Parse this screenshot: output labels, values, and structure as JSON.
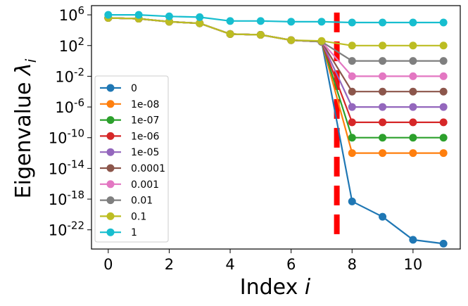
{
  "chart_data": {
    "type": "line",
    "title": "",
    "xlabel": "Index",
    "xlabel_var": "i",
    "ylabel": "Eigenvalue",
    "ylabel_var": "λ",
    "ylabel_sub": "i",
    "yscale": "log",
    "xlim": [
      -0.55,
      11.55
    ],
    "ylim_log10": [
      -24.5,
      7.2
    ],
    "x_ticks": [
      0,
      2,
      4,
      6,
      8,
      10
    ],
    "y_ticks_exp": [
      6,
      2,
      -2,
      -6,
      -10,
      -14,
      -18,
      -22
    ],
    "y_tick_base": "10",
    "y_tick_labels": [
      "6",
      "2",
      "-2",
      "-6",
      "-10",
      "-14",
      "-18",
      "-22"
    ],
    "x": [
      0,
      1,
      2,
      3,
      4,
      5,
      6,
      7,
      8,
      9,
      10,
      11
    ],
    "vline": {
      "x": 7.5,
      "color": "#ff0000",
      "style": "dashed"
    },
    "legend_position": "center-left",
    "series": [
      {
        "name": "0",
        "color": "#1f77b4",
        "log10_values": [
          5.6,
          5.5,
          5.1,
          4.9,
          3.5,
          3.4,
          2.7,
          2.5,
          -18.3,
          -20.3,
          -23.3,
          -23.8
        ]
      },
      {
        "name": "1e-08",
        "color": "#ff7f0e",
        "log10_values": [
          5.6,
          5.5,
          5.1,
          4.9,
          3.5,
          3.4,
          2.7,
          2.5,
          -12.0,
          -12.0,
          -12.0,
          -12.0
        ]
      },
      {
        "name": "1e-07",
        "color": "#2ca02c",
        "log10_values": [
          5.6,
          5.5,
          5.1,
          4.9,
          3.5,
          3.4,
          2.7,
          2.5,
          -10.0,
          -10.0,
          -10.0,
          -10.0
        ]
      },
      {
        "name": "1e-06",
        "color": "#d62728",
        "log10_values": [
          5.6,
          5.5,
          5.1,
          4.9,
          3.5,
          3.4,
          2.7,
          2.5,
          -8.0,
          -8.0,
          -8.0,
          -8.0
        ]
      },
      {
        "name": "1e-05",
        "color": "#9467bd",
        "log10_values": [
          5.6,
          5.5,
          5.1,
          4.9,
          3.5,
          3.4,
          2.7,
          2.5,
          -6.0,
          -6.0,
          -6.0,
          -6.0
        ]
      },
      {
        "name": "0.0001",
        "color": "#8c564b",
        "log10_values": [
          5.6,
          5.5,
          5.1,
          4.9,
          3.5,
          3.4,
          2.7,
          2.5,
          -4.0,
          -4.0,
          -4.0,
          -4.0
        ]
      },
      {
        "name": "0.001",
        "color": "#e377c2",
        "log10_values": [
          5.6,
          5.5,
          5.1,
          4.9,
          3.5,
          3.4,
          2.7,
          2.5,
          -2.0,
          -2.0,
          -2.0,
          -2.0
        ]
      },
      {
        "name": "0.01",
        "color": "#7f7f7f",
        "log10_values": [
          5.6,
          5.5,
          5.1,
          4.9,
          3.5,
          3.4,
          2.7,
          2.5,
          0.0,
          0.0,
          0.0,
          0.0
        ]
      },
      {
        "name": "0.1",
        "color": "#bcbd22",
        "log10_values": [
          5.6,
          5.5,
          5.1,
          4.9,
          3.5,
          3.4,
          2.7,
          2.6,
          2.0,
          2.0,
          2.0,
          2.0
        ]
      },
      {
        "name": "1",
        "color": "#17becf",
        "log10_values": [
          6.0,
          6.0,
          5.8,
          5.7,
          5.2,
          5.2,
          5.1,
          5.1,
          5.0,
          5.0,
          5.0,
          5.0
        ]
      }
    ]
  }
}
